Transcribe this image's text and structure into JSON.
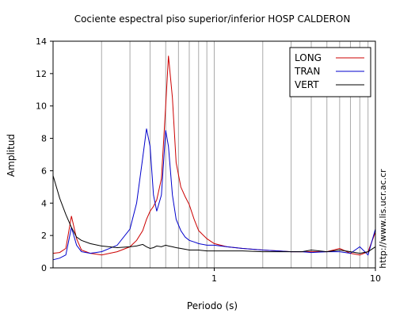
{
  "chart_data": {
    "type": "line",
    "title": "Cociente espectral piso superior/inferior  HOSP CALDERON",
    "xlabel": "Periodo (s)",
    "ylabel": "Amplitud",
    "xscale": "log",
    "xlim": [
      0.1,
      10
    ],
    "ylim": [
      0,
      14
    ],
    "x_ticks": [
      1,
      10
    ],
    "y_ticks": [
      0,
      2,
      4,
      6,
      8,
      10,
      12,
      14
    ],
    "grid": "vertical",
    "legend_position": "top-right",
    "watermark": "http://www.lis.ucr.ac.cr",
    "x": [
      0.1,
      0.11,
      0.12,
      0.13,
      0.14,
      0.15,
      0.17,
      0.2,
      0.25,
      0.3,
      0.33,
      0.36,
      0.38,
      0.4,
      0.42,
      0.44,
      0.47,
      0.5,
      0.52,
      0.55,
      0.58,
      0.62,
      0.66,
      0.7,
      0.75,
      0.8,
      0.9,
      1.0,
      1.2,
      1.5,
      2,
      2.5,
      3,
      3.5,
      4,
      5,
      6,
      7,
      8,
      9,
      10
    ],
    "series": [
      {
        "name": "LONG",
        "color": "#cc0000",
        "values": [
          0.9,
          0.95,
          1.2,
          3.2,
          1.8,
          1.1,
          0.9,
          0.8,
          1.0,
          1.3,
          1.7,
          2.3,
          3.0,
          3.5,
          3.8,
          4.2,
          5.5,
          10.0,
          13.1,
          10.5,
          6.5,
          5.0,
          4.4,
          3.9,
          3.0,
          2.3,
          1.8,
          1.5,
          1.3,
          1.2,
          1.1,
          1.05,
          1.0,
          1.0,
          1.0,
          1.0,
          1.2,
          0.9,
          0.8,
          1.0,
          2.2
        ]
      },
      {
        "name": "TRAN",
        "color": "#0000cc",
        "values": [
          0.5,
          0.6,
          0.8,
          2.5,
          1.4,
          1.0,
          0.9,
          1.0,
          1.4,
          2.4,
          4.0,
          6.8,
          8.6,
          7.5,
          4.5,
          3.5,
          4.5,
          8.5,
          7.5,
          4.5,
          3.0,
          2.3,
          1.9,
          1.7,
          1.6,
          1.5,
          1.4,
          1.4,
          1.3,
          1.2,
          1.1,
          1.05,
          1.0,
          1.0,
          0.95,
          1.0,
          1.0,
          0.9,
          1.3,
          0.8,
          2.4
        ]
      },
      {
        "name": "VERT",
        "color": "#000000",
        "values": [
          5.7,
          4.3,
          3.3,
          2.5,
          1.9,
          1.7,
          1.5,
          1.35,
          1.25,
          1.3,
          1.35,
          1.45,
          1.3,
          1.2,
          1.25,
          1.35,
          1.3,
          1.4,
          1.35,
          1.3,
          1.25,
          1.2,
          1.15,
          1.1,
          1.1,
          1.1,
          1.05,
          1.05,
          1.05,
          1.05,
          1.0,
          1.0,
          1.0,
          1.0,
          1.1,
          1.0,
          1.1,
          1.0,
          0.9,
          1.0,
          1.3
        ]
      }
    ]
  }
}
